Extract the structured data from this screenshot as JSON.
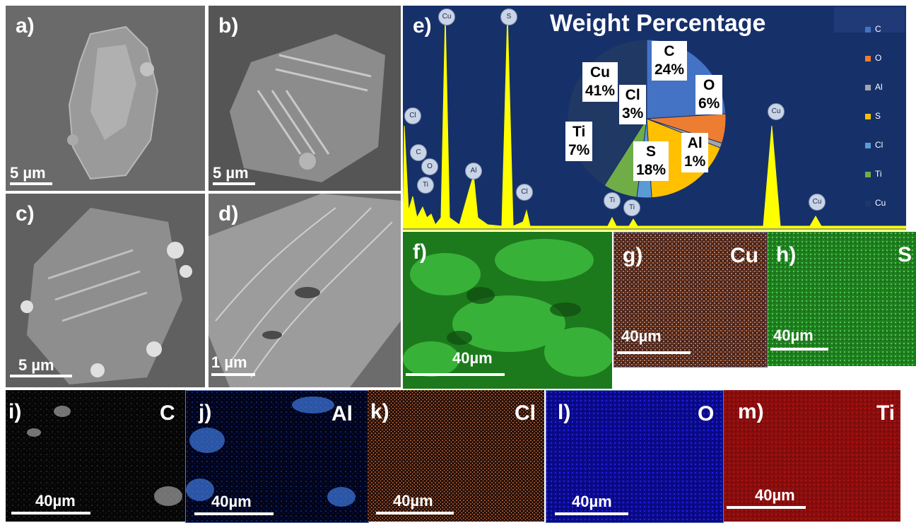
{
  "panels": {
    "a": {
      "label": "a)",
      "scale": "5 µm"
    },
    "b": {
      "label": "b)",
      "scale": "5 µm"
    },
    "c": {
      "label": "c)",
      "scale": "5 µm"
    },
    "d": {
      "label": "d)",
      "scale": "1 µm"
    },
    "e": {
      "label": "e)",
      "title": "Weight Percentage"
    },
    "f": {
      "label": "f)",
      "scale": "40µm"
    },
    "g": {
      "label": "g)",
      "element": "Cu",
      "scale": "40µm"
    },
    "h": {
      "label": "h)",
      "element": "S",
      "scale": "40µm"
    },
    "i": {
      "label": "i)",
      "element": "C",
      "scale": "40µm"
    },
    "j": {
      "label": "j)",
      "element": "Al",
      "scale": "40µm"
    },
    "k": {
      "label": "k)",
      "element": "Cl",
      "scale": "40µm"
    },
    "l": {
      "label": "l)",
      "element": "O",
      "scale": "40µm"
    },
    "m": {
      "label": "m)",
      "element": "Ti",
      "scale": "40µm"
    }
  },
  "chart_data": {
    "type": "pie",
    "title": "Weight Percentage",
    "categories": [
      "C",
      "O",
      "Al",
      "S",
      "Cl",
      "Ti",
      "Cu"
    ],
    "values": [
      24,
      6,
      1,
      18,
      3,
      7,
      41
    ],
    "colors": [
      "#4472c4",
      "#ed7d31",
      "#a5a5a5",
      "#ffc000",
      "#5b9bd5",
      "#70ad47",
      "#203864"
    ],
    "slice_labels": [
      {
        "element": "C",
        "percent": "24%"
      },
      {
        "element": "O",
        "percent": "6%"
      },
      {
        "element": "Al",
        "percent": "1%"
      },
      {
        "element": "S",
        "percent": "18%"
      },
      {
        "element": "Cl",
        "percent": "3%"
      },
      {
        "element": "Ti",
        "percent": "7%"
      },
      {
        "element": "Cu",
        "percent": "41%"
      }
    ],
    "legend": [
      "C",
      "O",
      "Al",
      "S",
      "Cl",
      "Ti",
      "Cu"
    ],
    "legend_position": "right"
  },
  "spectrum_peaks": [
    "Cl",
    "C",
    "O",
    "Ti",
    "Cu",
    "Al",
    "S",
    "Cl",
    "Ti",
    "Ti",
    "Cu",
    "Cu"
  ],
  "colors": {
    "spectrum_bg": "#16306a",
    "spectrum_fill": "#ffff00"
  }
}
